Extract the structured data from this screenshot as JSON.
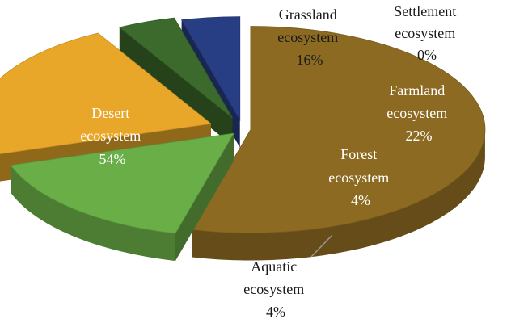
{
  "chart_data": {
    "type": "pie",
    "title": "",
    "style": "3d-exploded",
    "slices": [
      {
        "label": "Desert ecosystem",
        "value": 54,
        "value_label": "54%",
        "color": "#8C6A22"
      },
      {
        "label": "Grassland ecosystem",
        "value": 16,
        "value_label": "16%",
        "color": "#69AE47"
      },
      {
        "label": "Settlement ecosystem",
        "value": 0,
        "value_label": "0%",
        "color": "#6B6B6B"
      },
      {
        "label": "Farmland ecosystem",
        "value": 22,
        "value_label": "22%",
        "color": "#E9A72A"
      },
      {
        "label": "Forest ecosystem",
        "value": 4,
        "value_label": "4%",
        "color": "#3B6A2C"
      },
      {
        "label": "Aquatic ecosystem",
        "value": 4,
        "value_label": "4%",
        "color": "#283E84"
      }
    ]
  }
}
